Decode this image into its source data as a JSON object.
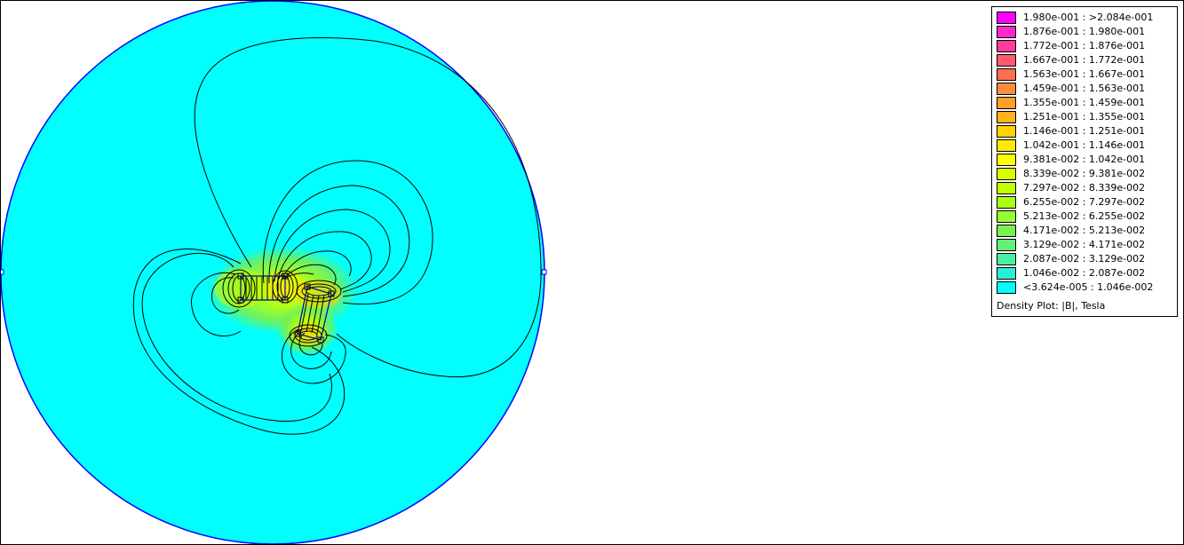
{
  "plot": {
    "background_color": "#00ffff",
    "boundary_color": "#0000ff",
    "contour_color": "#000000"
  },
  "legend": {
    "title": "Density Plot: |B|, Tesla",
    "items": [
      {
        "label": "1.980e-001 : >2.084e-001",
        "color": "#ff00ff"
      },
      {
        "label": "1.876e-001 : 1.980e-001",
        "color": "#ff28c8"
      },
      {
        "label": "1.772e-001 : 1.876e-001",
        "color": "#ff3c9a"
      },
      {
        "label": "1.667e-001 : 1.772e-001",
        "color": "#ff5a6e"
      },
      {
        "label": "1.563e-001 : 1.667e-001",
        "color": "#ff6e50"
      },
      {
        "label": "1.459e-001 : 1.563e-001",
        "color": "#ff8c3c"
      },
      {
        "label": "1.355e-001 : 1.459e-001",
        "color": "#ffa028"
      },
      {
        "label": "1.251e-001 : 1.355e-001",
        "color": "#ffb41e"
      },
      {
        "label": "1.146e-001 : 1.251e-001",
        "color": "#ffd200"
      },
      {
        "label": "1.042e-001 : 1.146e-001",
        "color": "#ffeb00"
      },
      {
        "label": "9.381e-002 : 1.042e-001",
        "color": "#ffff00"
      },
      {
        "label": "8.339e-002 : 9.381e-002",
        "color": "#dcff00"
      },
      {
        "label": "7.297e-002 : 8.339e-002",
        "color": "#c3ff00"
      },
      {
        "label": "6.255e-002 : 7.297e-002",
        "color": "#aaff14"
      },
      {
        "label": "5.213e-002 : 6.255e-002",
        "color": "#96ff32"
      },
      {
        "label": "4.171e-002 : 5.213e-002",
        "color": "#78f050"
      },
      {
        "label": "3.129e-002 : 4.171e-002",
        "color": "#64f078"
      },
      {
        "label": "2.087e-002 : 3.129e-002",
        "color": "#46f0a0"
      },
      {
        "label": "1.046e-002 : 2.087e-002",
        "color": "#28f0d2"
      },
      {
        "label": "<3.624e-005 : 1.046e-002",
        "color": "#00ffff"
      }
    ]
  }
}
